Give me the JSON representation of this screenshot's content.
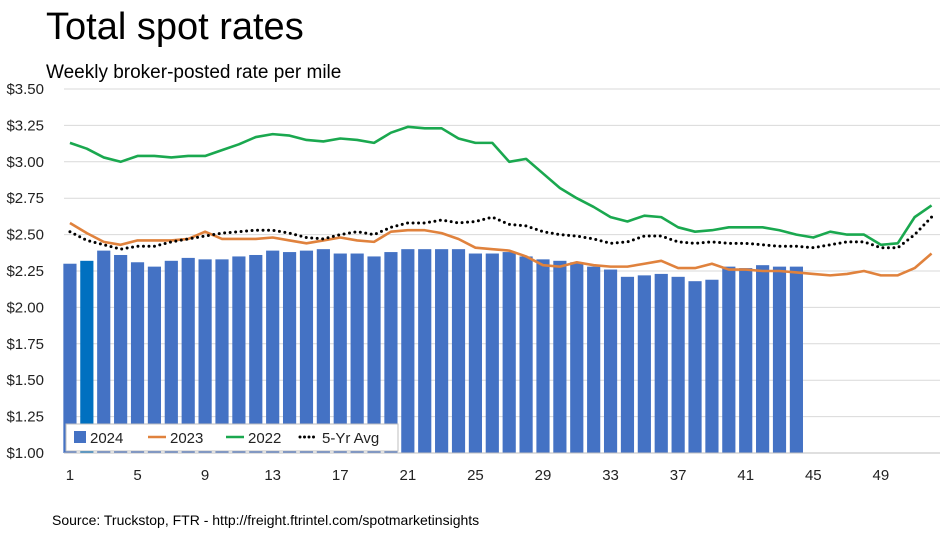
{
  "chart_data": {
    "type": "bar+line",
    "title": "Total spot rates",
    "subtitle": "Weekly broker-posted rate per mile",
    "source": "Source: Truckstop, FTR - http://freight.ftrintel.com/spotmarketinsights",
    "ylim": [
      1.0,
      3.5
    ],
    "yticks": [
      "$1.00",
      "$1.25",
      "$1.50",
      "$1.75",
      "$2.00",
      "$2.25",
      "$2.50",
      "$2.75",
      "$3.00",
      "$3.25",
      "$3.50"
    ],
    "xticks": [
      "1",
      "5",
      "9",
      "13",
      "17",
      "21",
      "25",
      "29",
      "33",
      "37",
      "41",
      "45",
      "49"
    ],
    "grid": true,
    "legend_position": "bottom-left",
    "highlighted_bar_week": 2,
    "series": [
      {
        "name": "2024",
        "type": "bar",
        "color": "#4472c4",
        "highlight_color": "#0070c0",
        "values": [
          2.3,
          2.32,
          2.39,
          2.36,
          2.31,
          2.28,
          2.32,
          2.34,
          2.33,
          2.33,
          2.35,
          2.36,
          2.39,
          2.38,
          2.39,
          2.4,
          2.37,
          2.37,
          2.35,
          2.38,
          2.4,
          2.4,
          2.4,
          2.4,
          2.37,
          2.37,
          2.38,
          2.35,
          2.33,
          2.32,
          2.31,
          2.28,
          2.26,
          2.21,
          2.22,
          2.23,
          2.21,
          2.18,
          2.19,
          2.28,
          2.27,
          2.29,
          2.28,
          2.28
        ]
      },
      {
        "name": "2023",
        "type": "line",
        "color": "#e0823d",
        "values": [
          2.58,
          2.51,
          2.45,
          2.43,
          2.46,
          2.46,
          2.46,
          2.47,
          2.52,
          2.47,
          2.47,
          2.47,
          2.48,
          2.46,
          2.44,
          2.46,
          2.48,
          2.46,
          2.45,
          2.52,
          2.53,
          2.53,
          2.51,
          2.47,
          2.41,
          2.4,
          2.39,
          2.35,
          2.29,
          2.28,
          2.31,
          2.29,
          2.28,
          2.28,
          2.3,
          2.32,
          2.27,
          2.27,
          2.3,
          2.26,
          2.26,
          2.25,
          2.25,
          2.24,
          2.23,
          2.22,
          2.23,
          2.25,
          2.22,
          2.22,
          2.27,
          2.37
        ]
      },
      {
        "name": "2022",
        "type": "line",
        "color": "#1aa84f",
        "values": [
          3.13,
          3.09,
          3.03,
          3.0,
          3.04,
          3.04,
          3.03,
          3.04,
          3.04,
          3.08,
          3.12,
          3.17,
          3.19,
          3.18,
          3.15,
          3.14,
          3.16,
          3.15,
          3.13,
          3.2,
          3.24,
          3.23,
          3.23,
          3.16,
          3.13,
          3.13,
          3.0,
          3.02,
          2.92,
          2.82,
          2.75,
          2.69,
          2.62,
          2.59,
          2.63,
          2.62,
          2.55,
          2.52,
          2.53,
          2.55,
          2.55,
          2.55,
          2.53,
          2.5,
          2.48,
          2.52,
          2.5,
          2.5,
          2.43,
          2.44,
          2.62,
          2.7
        ]
      },
      {
        "name": "5-Yr Avg",
        "type": "dotted",
        "color": "#000000",
        "values": [
          2.52,
          2.46,
          2.43,
          2.4,
          2.42,
          2.42,
          2.45,
          2.47,
          2.49,
          2.51,
          2.52,
          2.53,
          2.53,
          2.51,
          2.48,
          2.47,
          2.5,
          2.52,
          2.5,
          2.55,
          2.58,
          2.58,
          2.6,
          2.58,
          2.59,
          2.62,
          2.57,
          2.56,
          2.52,
          2.5,
          2.49,
          2.47,
          2.44,
          2.45,
          2.49,
          2.49,
          2.45,
          2.44,
          2.45,
          2.44,
          2.44,
          2.43,
          2.42,
          2.42,
          2.41,
          2.43,
          2.45,
          2.45,
          2.41,
          2.41,
          2.5,
          2.62
        ]
      }
    ]
  }
}
